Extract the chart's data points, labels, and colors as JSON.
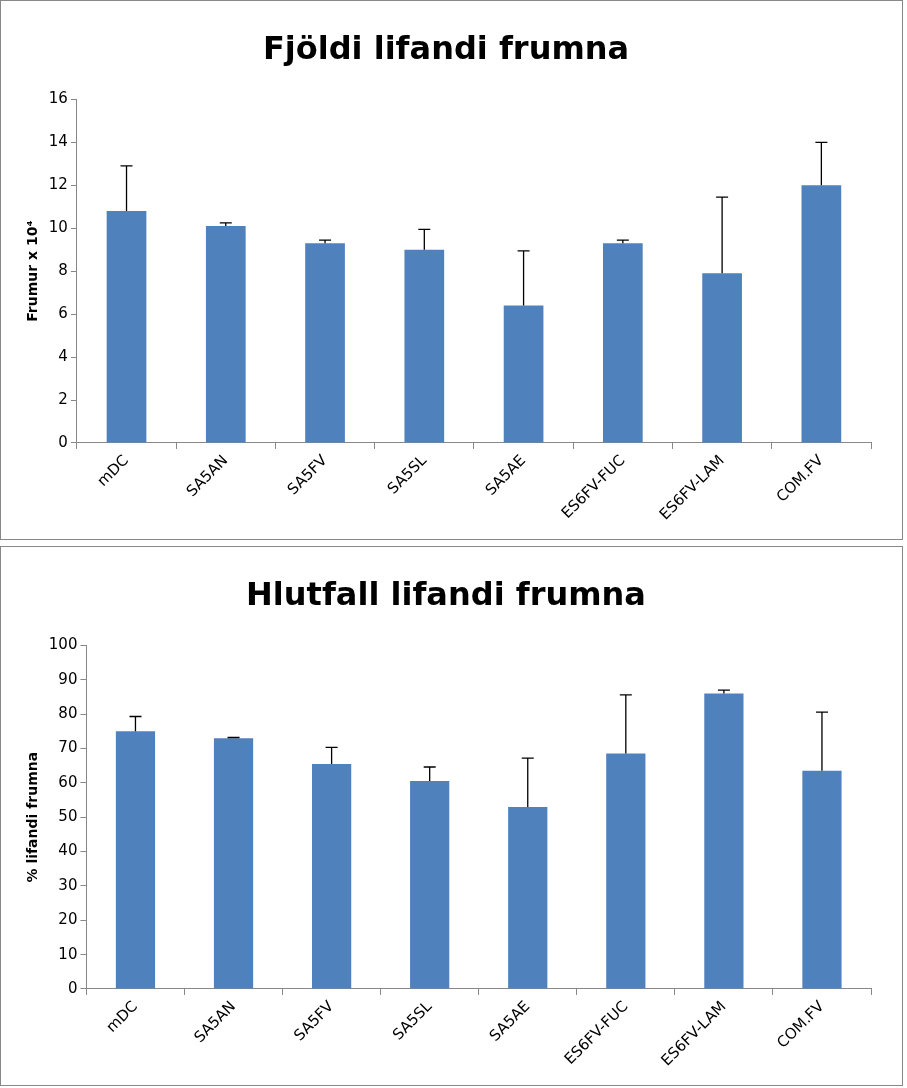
{
  "chart_data": [
    {
      "type": "bar",
      "title": "Fjöldi lifandi frumna",
      "ylabel": "Frumur x 10⁴",
      "categories": [
        "mDC",
        "SA5AN",
        "SA5FV",
        "SA5SL",
        "SA5AE",
        "ES6FV-FUC",
        "ES6FV-LAM",
        "COM.FV"
      ],
      "values": [
        10.8,
        10.1,
        9.3,
        9.0,
        6.4,
        9.3,
        7.9,
        12.0
      ],
      "errors": [
        [
          10.8,
          12.9
        ],
        [
          10.1,
          10.25
        ],
        [
          9.3,
          9.45
        ],
        [
          9.0,
          9.95
        ],
        [
          6.4,
          8.95
        ],
        [
          9.3,
          9.45
        ],
        [
          7.9,
          11.45
        ],
        [
          12.0,
          14.0
        ]
      ],
      "color": "#4f81bd",
      "ylim": [
        0,
        16
      ],
      "yticks": [
        0,
        2,
        4,
        6,
        8,
        10,
        12,
        14,
        16
      ],
      "grid": false,
      "legend": false
    },
    {
      "type": "bar",
      "title": "Hlutfall lifandi frumna",
      "ylabel": "% lifandi frumna",
      "categories": [
        "mDC",
        "SA5AN",
        "SA5FV",
        "SA5SL",
        "SA5AE",
        "ES6FV-FUC",
        "ES6FV-LAM",
        "COM.FV"
      ],
      "values": [
        75,
        73,
        65.5,
        60.5,
        53,
        68.5,
        86,
        63.5
      ],
      "errors": [
        [
          75,
          79.3
        ],
        [
          73,
          73.2
        ],
        [
          65.5,
          70.3
        ],
        [
          60.5,
          64.6
        ],
        [
          53,
          67.2
        ],
        [
          68.5,
          85.6
        ],
        [
          86,
          87
        ],
        [
          63.5,
          80.6
        ]
      ],
      "color": "#4f81bd",
      "ylim": [
        0,
        100
      ],
      "yticks": [
        0,
        10,
        20,
        30,
        40,
        50,
        60,
        70,
        80,
        90,
        100
      ],
      "grid": false,
      "legend": false
    }
  ]
}
